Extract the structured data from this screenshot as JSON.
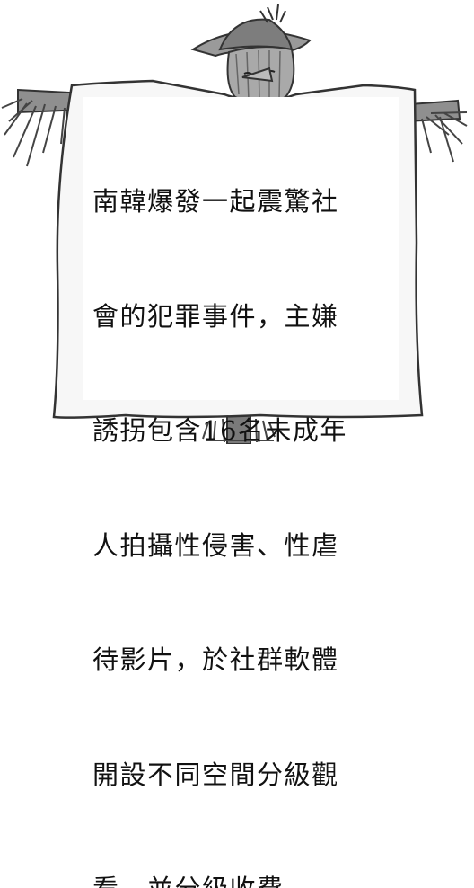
{
  "sign": {
    "lines": [
      "南韓爆發一起震驚社",
      "會的犯罪事件，主嫌",
      "誘拐包含16名未成年",
      "人拍攝性侵害、性虐",
      "待影片，於社群軟體",
      "開設不同空間分級觀",
      "看，並分級收費。"
    ]
  },
  "colors": {
    "sign_fill": "#f7f7f7",
    "text": "#111111",
    "outline": "#333333"
  }
}
